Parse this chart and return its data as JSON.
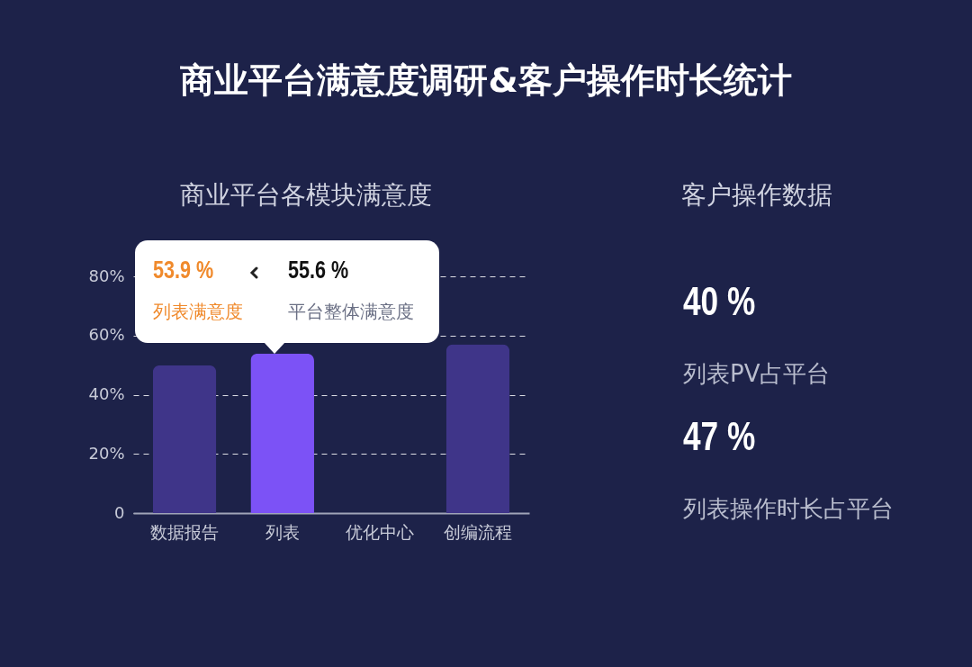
{
  "chart_data": [
    {
      "type": "bar",
      "title": "商业平台满意度调研&客户操作时长统计",
      "subtitle": "商业平台各模块满意度",
      "categories": [
        "数据报告",
        "列表",
        "优化中心",
        "创编流程"
      ],
      "values": [
        50,
        53.9,
        null,
        57
      ],
      "colors": [
        "#3f3589",
        "#7c52f6",
        "#3f3589",
        "#3f3589"
      ],
      "ylim": [
        0,
        80
      ],
      "yticks": [
        0,
        {
          "value": 20,
          "label": "20%"
        },
        {
          "value": 40,
          "label": "40%"
        },
        {
          "value": 60,
          "label": "60%"
        },
        {
          "value": 80,
          "label": "80%"
        }
      ],
      "grid": "y",
      "annotations": [
        "53.9 %",
        "列表满意度",
        "55.6 %",
        "平台整体满意度"
      ]
    },
    {
      "type": "other",
      "title": "客户操作数据",
      "annotations": [
        "40 %",
        "列表PV占平台",
        "47 %",
        "列表操作时长占平台"
      ]
    }
  ]
}
